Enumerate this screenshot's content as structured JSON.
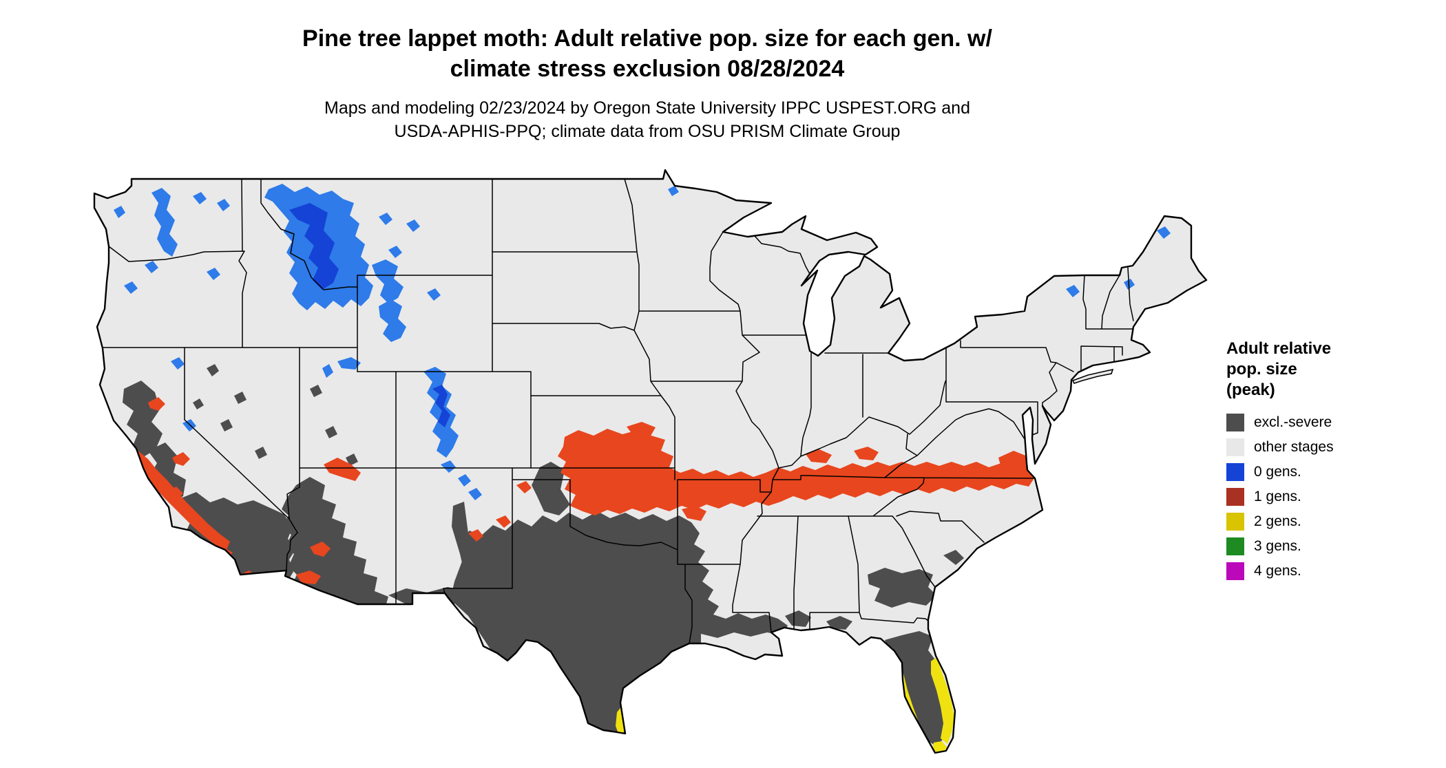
{
  "title": {
    "line1": "Pine tree lappet moth: Adult relative pop. size for each gen. w/",
    "line2": "climate stress exclusion 08/28/2024"
  },
  "subtitle": {
    "line1": "Maps and modeling 02/23/2024 by Oregon State University IPPC USPEST.ORG and",
    "line2": "USDA-APHIS-PPQ; climate data from OSU PRISM Climate Group"
  },
  "legend": {
    "title_lines": [
      "Adult relative",
      "pop. size",
      "(peak)"
    ],
    "items": [
      {
        "label": "excl.-severe",
        "color": "#4D4D4D"
      },
      {
        "label": "other stages",
        "color": "#E8E8E8"
      },
      {
        "label": "0 gens.",
        "color": "#1543D6"
      },
      {
        "label": "1 gens.",
        "color": "#A93121"
      },
      {
        "label": "2 gens.",
        "color": "#D8C400"
      },
      {
        "label": "3 gens.",
        "color": "#1E8B22"
      },
      {
        "label": "4 gens.",
        "color": "#BB08BB"
      }
    ]
  },
  "map": {
    "background": "#FFFFFF",
    "land_color": "#E9E9E9",
    "border_color": "#000000",
    "overlay_colors": {
      "excluded": "#4D4D4D",
      "gen0_blue": "#2E7BE9",
      "gen0_blue_dark": "#1543D6",
      "gen1_red": "#E8461E",
      "gen2_yellow": "#EFE210"
    },
    "regions": [
      {
        "color_class": "0 gens.",
        "areas": "WA Cascades, N Idaho / W Montana Rockies, Yellowstone-Wind River ranges, Colorado Rockies, Wasatch/Uintas, scattered northern specks"
      },
      {
        "color_class": "excl.-severe",
        "areas": "California valleys and SoCal, S Nevada specks, S Arizona, S New Mexico, most of central/south Texas, Gulf Coast, S Georgia, Florida interior"
      },
      {
        "color_class": "1 gens.",
        "areas": "Band from E Oklahoma / S Missouri / Arkansas across Kentucky-Tennessee into Virginia and NE North Carolina; fringes around southwestern excluded areas"
      },
      {
        "color_class": "2 gens.",
        "areas": "Florida east and west coasts and southern tip, far south Texas coast"
      }
    ]
  }
}
